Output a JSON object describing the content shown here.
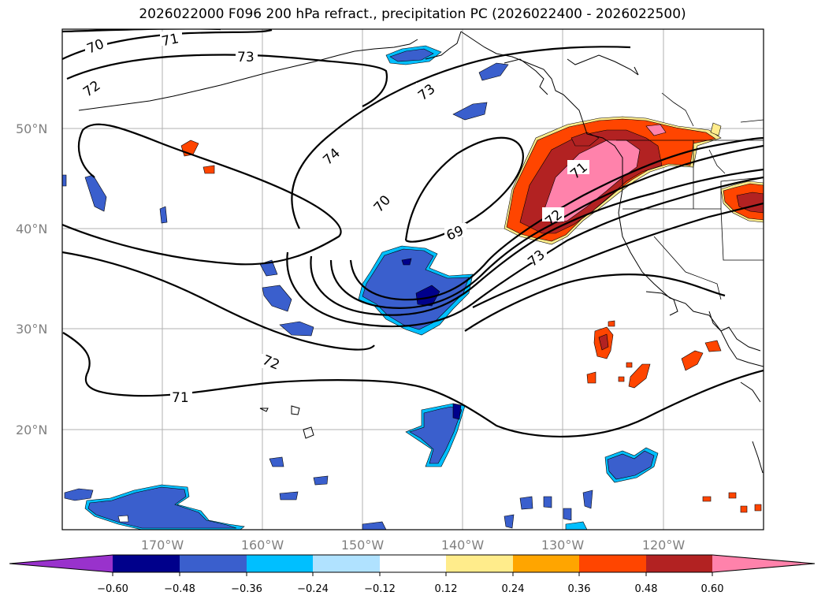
{
  "title": "2026022000 F096 200 hPa refract., precipitation PC (2026022400 - 2026022500)",
  "lat_labels": [
    "50°N",
    "40°N",
    "30°N",
    "20°N"
  ],
  "lon_labels": [
    "170°W",
    "160°W",
    "150°W",
    "140°W",
    "130°W",
    "120°W"
  ],
  "contour_labels": [
    "70",
    "71",
    "72",
    "73",
    "73",
    "74",
    "70",
    "69",
    "71",
    "72",
    "73",
    "72",
    "71"
  ],
  "colorbar": {
    "ticks": [
      "−0.60",
      "−0.48",
      "−0.36",
      "−0.24",
      "−0.12",
      "0.12",
      "0.24",
      "0.36",
      "0.48",
      "0.60"
    ],
    "colors": [
      "#9932CC",
      "#00008B",
      "#3A5FCD",
      "#00BFFF",
      "#B0E2FF",
      "#FFFFFF",
      "#FFEC8B",
      "#FFA500",
      "#FF4500",
      "#B22222",
      "#FF82AB"
    ]
  },
  "colors": {
    "positive_outline": "#FFC000",
    "negative_fill": "#3A5FCD"
  }
}
